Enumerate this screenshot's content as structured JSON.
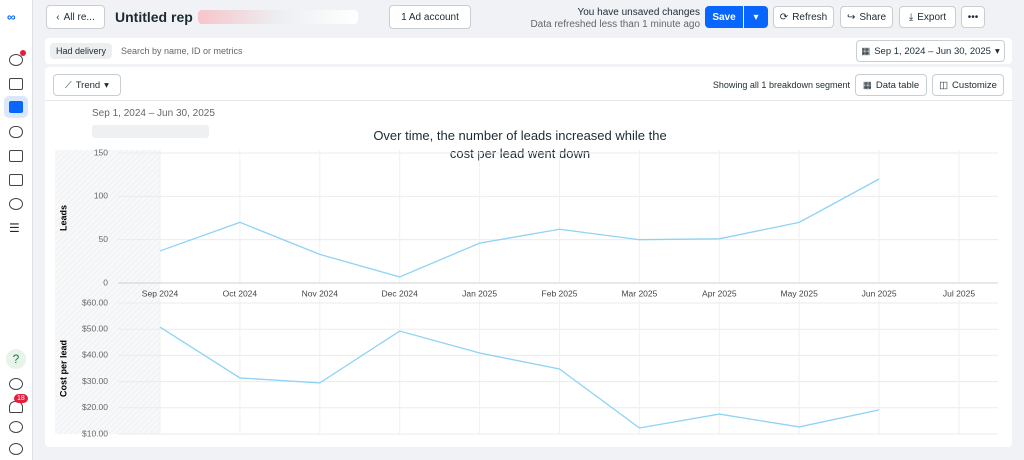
{
  "header": {
    "back": "All re...",
    "report_name": "Untitled rep",
    "account": "1 Ad account",
    "status": "You have unsaved changes",
    "refreshed": "Data refreshed less than 1 minute ago",
    "save": "Save",
    "refresh": "Refresh",
    "share": "Share",
    "export": "Export"
  },
  "filters": {
    "chip": "Had delivery",
    "search_placeholder": "Search by name, ID or metrics",
    "date_range": "Sep 1, 2024 – Jun 30, 2025"
  },
  "toolbar": {
    "view": "Trend",
    "segments": "Showing all 1 breakdown segment",
    "data_table": "Data table",
    "customize": "Customize"
  },
  "sidebar": {
    "notifications": "18"
  },
  "report": {
    "date_range": "Sep 1, 2024 – Jun 30, 2025",
    "title": "Over time, the number of leads increased while the cost per lead went down"
  },
  "chart_data": [
    {
      "type": "line",
      "ylabel": "Leads",
      "categories": [
        "Sep 2024",
        "Oct 2024",
        "Nov 2024",
        "Dec 2024",
        "Jan 2025",
        "Feb 2025",
        "Mar 2025",
        "Apr 2025",
        "May 2025",
        "Jun 2025",
        "Jul 2025"
      ],
      "series": [
        {
          "name": "Leads",
          "color": "#8fd3f4",
          "values": [
            37,
            70,
            33,
            7,
            46,
            62,
            50,
            51,
            70,
            120,
            null
          ]
        }
      ],
      "ylim": [
        0,
        150
      ],
      "yticks": [
        0,
        50,
        100,
        150
      ],
      "grid": true
    },
    {
      "type": "line",
      "ylabel": "Cost per lead",
      "series": [
        {
          "name": "Cost per lead",
          "color": "#8fd3f4",
          "values": [
            50.8,
            31.4,
            29.5,
            49.3,
            40.9,
            34.8,
            12.3,
            17.6,
            12.7,
            19.2,
            null
          ]
        }
      ],
      "ylim": [
        10,
        60
      ],
      "yticks": [
        {
          "value": 10,
          "label": "$10.00"
        },
        {
          "value": 20,
          "label": "$20.00"
        },
        {
          "value": 30,
          "label": "$30.00"
        },
        {
          "value": 40,
          "label": "$40.00"
        },
        {
          "value": 50,
          "label": "$50.00"
        },
        {
          "value": 60,
          "label": "$60.00"
        }
      ],
      "grid": true
    }
  ]
}
